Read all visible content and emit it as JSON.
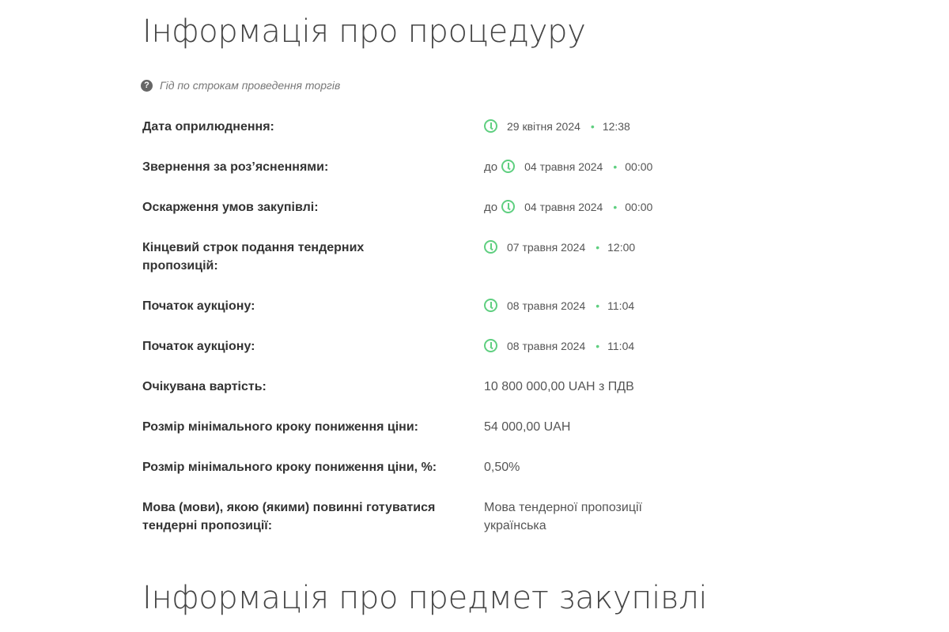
{
  "heading_procedure": "Інформація про процедуру",
  "guide_link": "Гід по строкам проведення торгів",
  "rows": [
    {
      "label": "Дата оприлюднення:",
      "prefix": "",
      "date": "29 квітня 2024",
      "time": "12:38"
    },
    {
      "label": "Звернення за роз’ясненнями:",
      "prefix": "до",
      "date": "04 травня 2024",
      "time": "00:00"
    },
    {
      "label": "Оскарження умов закупівлі:",
      "prefix": "до",
      "date": "04 травня 2024",
      "time": "00:00"
    },
    {
      "label": "Кінцевий строк подання тендерних пропозицій:",
      "prefix": "",
      "date": "07 травня 2024",
      "time": "12:00"
    },
    {
      "label": "Початок аукціону:",
      "prefix": "",
      "date": "08 травня 2024",
      "time": "11:04"
    },
    {
      "label": "Початок аукціону:",
      "prefix": "",
      "date": "08 травня 2024",
      "time": "11:04"
    }
  ],
  "expected_value": {
    "label": "Очікувана вартість:",
    "value": "10 800 000,00 UAH з ПДВ"
  },
  "min_step": {
    "label": "Розмір мінімального кроку пониження ціни:",
    "value": "54 000,00 UAH"
  },
  "min_step_percent": {
    "label": "Розмір мінімального кроку пониження ціни, %:",
    "value": "0,50%"
  },
  "language": {
    "label": "Мова (мови), якою (якими) повинні готуватися тендерні пропозиції:",
    "line1": "Мова тендерної пропозиції",
    "line2": "українська"
  },
  "heading_subject": "Інформація про предмет закупівлі",
  "colors": {
    "accent": "#5fcf80",
    "label": "#333333",
    "value": "#555555"
  },
  "icons": {
    "guide": "question-circle-icon",
    "date": "clock-icon"
  }
}
